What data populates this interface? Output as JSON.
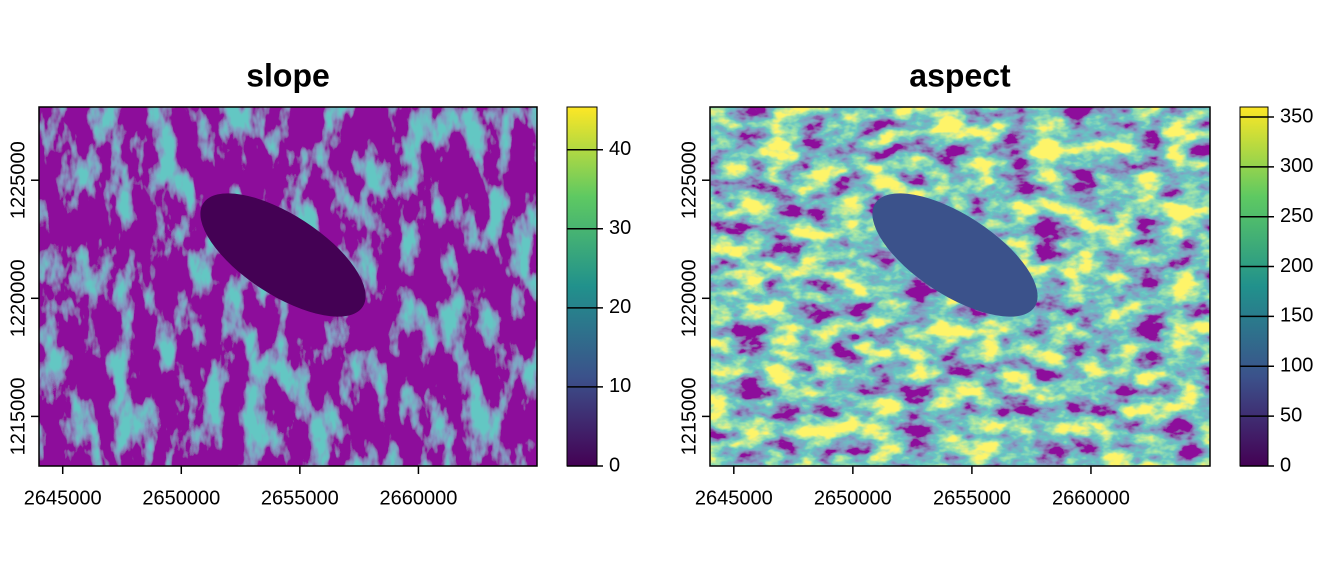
{
  "chart_data": [
    {
      "type": "raster",
      "title": "slope",
      "colormap": "viridis",
      "xlim": [
        2644000,
        2665000
      ],
      "xticks": [
        2645000,
        2650000,
        2655000,
        2660000
      ],
      "ylim": [
        1212900,
        1228100
      ],
      "yticks": [
        1215000,
        1220000,
        1225000
      ],
      "legend": {
        "lim": [
          0,
          45.4
        ],
        "ticks": [
          0,
          10,
          20,
          30,
          40
        ]
      }
    },
    {
      "type": "raster",
      "title": "aspect",
      "colormap": "viridis",
      "xlim": [
        2644000,
        2665000
      ],
      "xticks": [
        2645000,
        2650000,
        2655000,
        2660000
      ],
      "ylim": [
        1212900,
        1228100
      ],
      "yticks": [
        1215000,
        1220000,
        1225000
      ],
      "legend": {
        "lim": [
          0,
          360
        ],
        "ticks": [
          0,
          50,
          100,
          150,
          200,
          250,
          300,
          350
        ]
      }
    }
  ]
}
